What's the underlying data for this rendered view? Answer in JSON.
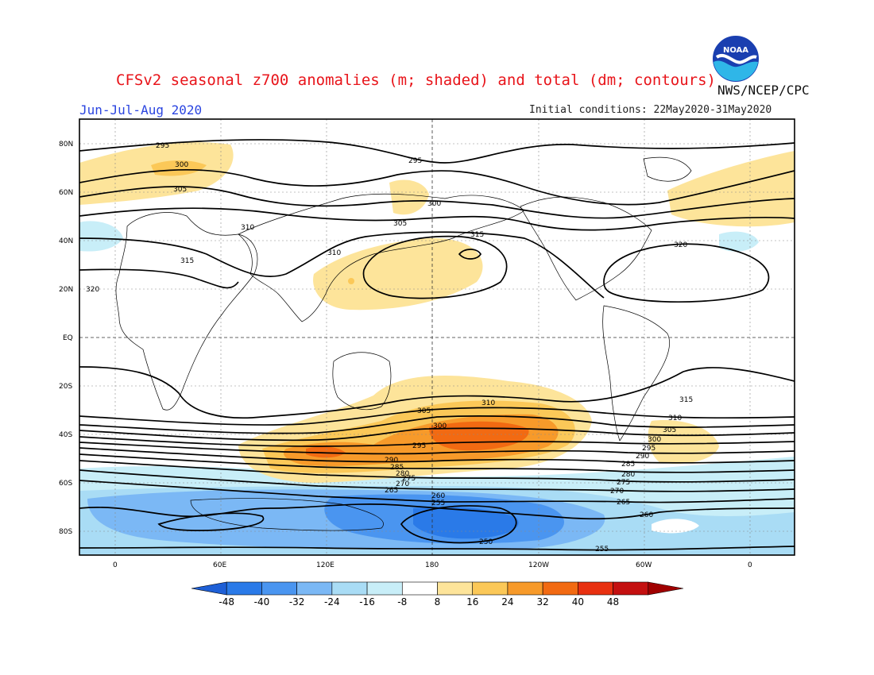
{
  "title": "CFSv2 seasonal z700 anomalies (m; shaded) and total (dm; contours)",
  "org": "NWS/NCEP/CPC",
  "season": "Jun-Jul-Aug 2020",
  "initial_conditions": "Initial conditions: 22May2020-31May2020",
  "logo_text": "NOAA",
  "axes": {
    "lat_ticks": [
      "80N",
      "60N",
      "40N",
      "20N",
      "EQ",
      "20S",
      "40S",
      "60S",
      "80S"
    ],
    "lon_ticks": [
      "0",
      "60E",
      "120E",
      "180",
      "120W",
      "60W",
      "0"
    ]
  },
  "colorbar": {
    "labels": [
      "-48",
      "-40",
      "-32",
      "-24",
      "-16",
      "-8",
      "8",
      "16",
      "24",
      "32",
      "40",
      "48"
    ],
    "colors": [
      "#1e5fd6",
      "#2a7ae8",
      "#4a95f0",
      "#7bb8f5",
      "#a9dcf5",
      "#c8eef8",
      "#ffffff",
      "#fde49a",
      "#fbc858",
      "#f79a2a",
      "#f26a12",
      "#e83010",
      "#c41010",
      "#a00000"
    ]
  },
  "contour_labels": [
    "295",
    "300",
    "305",
    "310",
    "315",
    "320",
    "295",
    "300",
    "305",
    "310",
    "315",
    "320",
    "310",
    "305",
    "300",
    "295",
    "290",
    "285",
    "280",
    "275",
    "270",
    "265",
    "260",
    "255",
    "250",
    "315",
    "310",
    "305",
    "300",
    "295",
    "290",
    "285",
    "280",
    "275",
    "270",
    "265",
    "260",
    "255"
  ]
}
